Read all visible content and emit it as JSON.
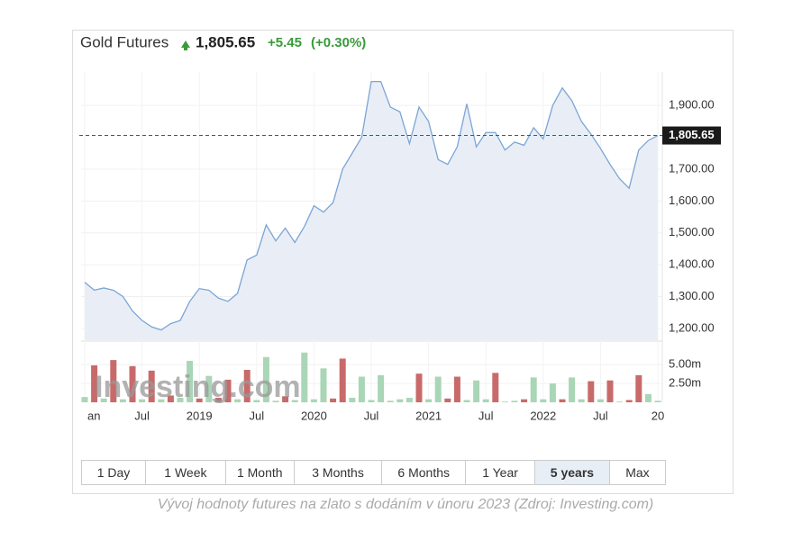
{
  "chart_data": [
    {
      "type": "line",
      "title": "Gold Futures",
      "change": "+5.45",
      "change_pct": "(+0.30%)",
      "current": {
        "value": 1805.65,
        "label": "1,805.65"
      },
      "color": "#7ba5d6",
      "fill": "#e9eef6",
      "grid": true,
      "categories": [
        "an",
        null,
        null,
        null,
        null,
        null,
        "Jul",
        null,
        null,
        null,
        null,
        null,
        "2019",
        null,
        null,
        null,
        null,
        null,
        "Jul",
        null,
        null,
        null,
        null,
        null,
        "2020",
        null,
        null,
        null,
        null,
        null,
        "Jul",
        null,
        null,
        null,
        null,
        null,
        "2021",
        null,
        null,
        null,
        null,
        null,
        "Jul",
        null,
        null,
        null,
        null,
        null,
        "2022",
        null,
        null,
        null,
        null,
        null,
        "Jul",
        null,
        null,
        null,
        null,
        null,
        "20"
      ],
      "values": [
        1345,
        1320,
        1327,
        1320,
        1300,
        1255,
        1225,
        1205,
        1195,
        1215,
        1225,
        1285,
        1325,
        1320,
        1295,
        1285,
        1310,
        1415,
        1430,
        1525,
        1475,
        1515,
        1470,
        1520,
        1585,
        1565,
        1595,
        1700,
        1750,
        1800,
        1975,
        1975,
        1895,
        1880,
        1780,
        1895,
        1850,
        1730,
        1715,
        1770,
        1905,
        1770,
        1815,
        1815,
        1760,
        1785,
        1775,
        1830,
        1795,
        1900,
        1955,
        1915,
        1850,
        1810,
        1765,
        1715,
        1670,
        1640,
        1760,
        1790,
        1805.65
      ],
      "ylim": [
        1163,
        2005
      ],
      "yticks": [
        {
          "value": 1200,
          "label": "1,200.00"
        },
        {
          "value": 1300,
          "label": "1,300.00"
        },
        {
          "value": 1400,
          "label": "1,400.00"
        },
        {
          "value": 1500,
          "label": "1,500.00"
        },
        {
          "value": 1600,
          "label": "1,600.00"
        },
        {
          "value": 1700,
          "label": "1,700.00"
        },
        {
          "value": 1900,
          "label": "1,900.00"
        }
      ]
    },
    {
      "type": "bar",
      "values": [
        0.7,
        4.9,
        0.5,
        5.6,
        0.4,
        4.8,
        0.4,
        4.2,
        0.4,
        0.9,
        0.6,
        5.5,
        0.5,
        3.5,
        0.6,
        3.0,
        0.4,
        4.3,
        0.3,
        6.0,
        0.2,
        0.8,
        0.3,
        6.6,
        0.4,
        4.5,
        0.5,
        5.8,
        0.6,
        3.4,
        0.3,
        3.6,
        0.2,
        0.4,
        0.6,
        3.8,
        0.4,
        3.4,
        0.5,
        3.4,
        0.3,
        2.9,
        0.4,
        3.9,
        0.1,
        0.2,
        0.4,
        3.3,
        0.4,
        2.5,
        0.4,
        3.3,
        0.4,
        2.8,
        0.4,
        2.9,
        0.1,
        0.3,
        3.6,
        1.1,
        0.2
      ],
      "colors": [
        "#a9d6b6",
        "#c96a6a",
        "#a9d6b6",
        "#c96a6a",
        "#a9d6b6",
        "#c96a6a",
        "#a9d6b6",
        "#c96a6a",
        "#a9d6b6",
        "#c96a6a",
        "#a9d6b6",
        "#a9d6b6",
        "#c96a6a",
        "#a9d6b6",
        "#c96a6a",
        "#c96a6a",
        "#a9d6b6",
        "#c96a6a",
        "#a9d6b6",
        "#a9d6b6",
        "#a9d6b6",
        "#c96a6a",
        "#a9d6b6",
        "#a9d6b6",
        "#a9d6b6",
        "#a9d6b6",
        "#c96a6a",
        "#c96a6a",
        "#a9d6b6",
        "#a9d6b6",
        "#a9d6b6",
        "#a9d6b6",
        "#a9d6b6",
        "#a9d6b6",
        "#a9d6b6",
        "#c96a6a",
        "#a9d6b6",
        "#a9d6b6",
        "#c96a6a",
        "#c96a6a",
        "#a9d6b6",
        "#a9d6b6",
        "#a9d6b6",
        "#c96a6a",
        "#a9d6b6",
        "#a9d6b6",
        "#c96a6a",
        "#a9d6b6",
        "#a9d6b6",
        "#a9d6b6",
        "#c96a6a",
        "#a9d6b6",
        "#a9d6b6",
        "#c96a6a",
        "#a9d6b6",
        "#c96a6a",
        "#a9d6b6",
        "#c96a6a",
        "#c96a6a",
        "#a9d6b6",
        "#a9d6b6"
      ],
      "ylim": [
        0,
        8
      ],
      "yticks": [
        {
          "value": 2.5,
          "label": "2.50m"
        },
        {
          "value": 5,
          "label": "5.00m"
        }
      ]
    }
  ],
  "watermark": "Investing.com",
  "buttons": [
    "1 Day",
    "1 Week",
    "1 Month",
    "3 Months",
    "6 Months",
    "1 Year",
    "5 years",
    "Max"
  ],
  "active_button": 6,
  "caption": "Vývoj hodnoty futures na zlato s dodáním v únoru 2023 (Zdroj: Investing.com)"
}
